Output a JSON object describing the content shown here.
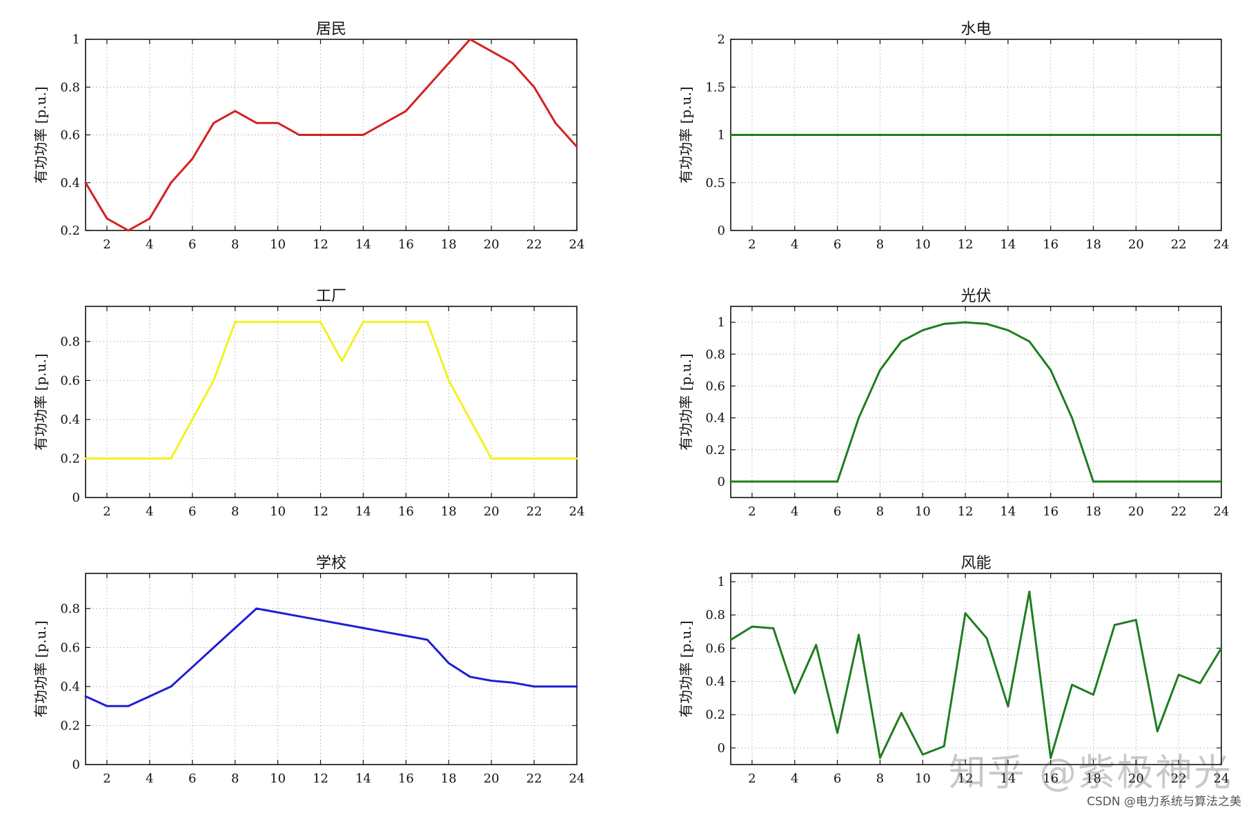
{
  "chart_data": [
    {
      "type": "line",
      "title": "居民",
      "ylabel": "有功功率 [p.u.]",
      "xlim": [
        1,
        24
      ],
      "ylim": [
        0.2,
        1
      ],
      "xticks": [
        2,
        4,
        6,
        8,
        10,
        12,
        14,
        16,
        18,
        20,
        22,
        24
      ],
      "yticks": [
        0.2,
        0.4,
        0.6,
        0.8,
        1
      ],
      "ytick_labels": [
        "0.2",
        "0.4",
        "0.6",
        "0.8",
        "1"
      ],
      "color": "#d42020",
      "grid": true,
      "x": [
        1,
        2,
        3,
        4,
        5,
        6,
        7,
        8,
        9,
        10,
        11,
        12,
        13,
        14,
        15,
        16,
        17,
        18,
        19,
        20,
        21,
        22,
        23,
        24
      ],
      "values": [
        0.4,
        0.25,
        0.2,
        0.25,
        0.4,
        0.5,
        0.65,
        0.7,
        0.65,
        0.65,
        0.6,
        0.6,
        0.6,
        0.6,
        0.65,
        0.7,
        0.8,
        0.9,
        1.0,
        0.95,
        0.9,
        0.8,
        0.65,
        0.55
      ]
    },
    {
      "type": "line",
      "title": "水电",
      "ylabel": "有功功率 [p.u.]",
      "xlim": [
        1,
        24
      ],
      "ylim": [
        0,
        2
      ],
      "xticks": [
        2,
        4,
        6,
        8,
        10,
        12,
        14,
        16,
        18,
        20,
        22,
        24
      ],
      "yticks": [
        0,
        0.5,
        1,
        1.5,
        2
      ],
      "ytick_labels": [
        "0",
        "0.5",
        "1",
        "1.5",
        "2"
      ],
      "color": "#1e7d1e",
      "grid": true,
      "x": [
        1,
        2,
        3,
        4,
        5,
        6,
        7,
        8,
        9,
        10,
        11,
        12,
        13,
        14,
        15,
        16,
        17,
        18,
        19,
        20,
        21,
        22,
        23,
        24
      ],
      "values": [
        1,
        1,
        1,
        1,
        1,
        1,
        1,
        1,
        1,
        1,
        1,
        1,
        1,
        1,
        1,
        1,
        1,
        1,
        1,
        1,
        1,
        1,
        1,
        1
      ]
    },
    {
      "type": "line",
      "title": "工厂",
      "ylabel": "有功功率 [p.u.]",
      "xlim": [
        1,
        24
      ],
      "ylim": [
        0,
        0.98
      ],
      "xticks": [
        2,
        4,
        6,
        8,
        10,
        12,
        14,
        16,
        18,
        20,
        22,
        24
      ],
      "yticks": [
        0,
        0.2,
        0.4,
        0.6,
        0.8
      ],
      "ytick_labels": [
        "0",
        "0.2",
        "0.4",
        "0.6",
        "0.8"
      ],
      "color": "#f2f21e",
      "grid": true,
      "x": [
        1,
        2,
        3,
        4,
        5,
        6,
        7,
        8,
        9,
        10,
        11,
        12,
        13,
        14,
        15,
        16,
        17,
        18,
        19,
        20,
        21,
        22,
        23,
        24
      ],
      "values": [
        0.2,
        0.2,
        0.2,
        0.2,
        0.2,
        0.4,
        0.6,
        0.9,
        0.9,
        0.9,
        0.9,
        0.9,
        0.7,
        0.9,
        0.9,
        0.9,
        0.9,
        0.6,
        0.4,
        0.2,
        0.2,
        0.2,
        0.2,
        0.2
      ]
    },
    {
      "type": "line",
      "title": "光伏",
      "ylabel": "有功功率 [p.u.]",
      "xlim": [
        1,
        24
      ],
      "ylim": [
        -0.1,
        1.1
      ],
      "xticks": [
        2,
        4,
        6,
        8,
        10,
        12,
        14,
        16,
        18,
        20,
        22,
        24
      ],
      "yticks": [
        0,
        0.2,
        0.4,
        0.6,
        0.8,
        1
      ],
      "ytick_labels": [
        "0",
        "0.2",
        "0.4",
        "0.6",
        "0.8",
        "1"
      ],
      "color": "#1e7d1e",
      "grid": true,
      "x": [
        1,
        2,
        3,
        4,
        5,
        6,
        7,
        8,
        9,
        10,
        11,
        12,
        13,
        14,
        15,
        16,
        17,
        18,
        19,
        20,
        21,
        22,
        23,
        24
      ],
      "values": [
        0,
        0,
        0,
        0,
        0,
        0,
        0.4,
        0.7,
        0.88,
        0.95,
        0.99,
        1.0,
        0.99,
        0.95,
        0.88,
        0.7,
        0.4,
        0,
        0,
        0,
        0,
        0,
        0,
        0
      ]
    },
    {
      "type": "line",
      "title": "学校",
      "ylabel": "有功功率 [p.u.]",
      "xlim": [
        1,
        24
      ],
      "ylim": [
        0,
        0.98
      ],
      "xticks": [
        2,
        4,
        6,
        8,
        10,
        12,
        14,
        16,
        18,
        20,
        22,
        24
      ],
      "yticks": [
        0,
        0.2,
        0.4,
        0.6,
        0.8
      ],
      "ytick_labels": [
        "0",
        "0.2",
        "0.4",
        "0.6",
        "0.8"
      ],
      "color": "#1e1ed2",
      "grid": true,
      "x": [
        1,
        2,
        3,
        4,
        5,
        6,
        7,
        8,
        9,
        10,
        11,
        12,
        13,
        14,
        15,
        16,
        17,
        18,
        19,
        20,
        21,
        22,
        23,
        24
      ],
      "values": [
        0.35,
        0.3,
        0.3,
        0.35,
        0.4,
        0.5,
        0.6,
        0.7,
        0.8,
        0.78,
        0.76,
        0.74,
        0.72,
        0.7,
        0.68,
        0.66,
        0.64,
        0.52,
        0.45,
        0.43,
        0.42,
        0.4,
        0.4,
        0.4
      ]
    },
    {
      "type": "line",
      "title": "风能",
      "ylabel": "有功功率 [p.u.]",
      "xlim": [
        1,
        24
      ],
      "ylim": [
        -0.1,
        1.05
      ],
      "xticks": [
        2,
        4,
        6,
        8,
        10,
        12,
        14,
        16,
        18,
        20,
        22,
        24
      ],
      "yticks": [
        0,
        0.2,
        0.4,
        0.6,
        0.8,
        1
      ],
      "ytick_labels": [
        "0",
        "0.2",
        "0.4",
        "0.6",
        "0.8",
        "1"
      ],
      "color": "#1e7d1e",
      "grid": true,
      "x": [
        1,
        2,
        3,
        4,
        5,
        6,
        7,
        8,
        9,
        10,
        11,
        12,
        13,
        14,
        15,
        16,
        17,
        18,
        19,
        20,
        21,
        22,
        23,
        24
      ],
      "values": [
        0.65,
        0.73,
        0.72,
        0.33,
        0.62,
        0.09,
        0.68,
        -0.06,
        0.21,
        -0.04,
        0.01,
        0.81,
        0.66,
        0.25,
        0.94,
        -0.06,
        0.38,
        0.32,
        0.74,
        0.77,
        0.1,
        0.44,
        0.39,
        0.6
      ]
    }
  ],
  "watermarks": {
    "zhihu": "知乎 @紫极神光",
    "csdn": "CSDN @电力系统与算法之美"
  }
}
